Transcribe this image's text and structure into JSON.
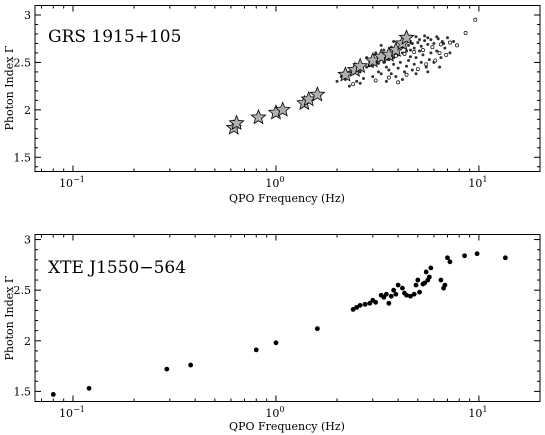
{
  "chart_data": [
    {
      "type": "scatter",
      "title": "GRS 1915+105",
      "xlabel": "QPO Frequency (Hz)",
      "ylabel": "Photon Index  Γ",
      "xscale": "log",
      "xlim": [
        0.065,
        20
      ],
      "ylim": [
        1.35,
        3.1
      ],
      "x_ticks": [
        {
          "value": 0.1,
          "base": "10",
          "exp": "−1"
        },
        {
          "value": 1,
          "base": "10",
          "exp": "0"
        },
        {
          "value": 10,
          "base": "10",
          "exp": "1"
        }
      ],
      "y_ticks": [
        {
          "value": 1.5,
          "label": "1.5"
        },
        {
          "value": 2,
          "label": "2"
        },
        {
          "value": 2.5,
          "label": "2.5"
        },
        {
          "value": 3,
          "label": "3"
        }
      ],
      "grid": false,
      "series": [
        {
          "marker": "star",
          "color": "#b0b0b0",
          "points": [
            [
              0.62,
              1.81
            ],
            [
              0.64,
              1.86
            ],
            [
              0.82,
              1.92
            ],
            [
              1.0,
              1.97
            ],
            [
              1.08,
              2.0
            ],
            [
              1.38,
              2.07
            ],
            [
              1.45,
              2.11
            ],
            [
              1.6,
              2.16
            ],
            [
              2.2,
              2.37
            ],
            [
              2.45,
              2.42
            ],
            [
              2.6,
              2.46
            ],
            [
              3.0,
              2.52
            ],
            [
              3.3,
              2.56
            ],
            [
              3.6,
              2.58
            ],
            [
              3.9,
              2.63
            ],
            [
              4.2,
              2.7
            ],
            [
              4.4,
              2.76
            ]
          ]
        },
        {
          "marker": "dot-small",
          "color": "#333333",
          "points": [
            [
              2.0,
              2.3
            ],
            [
              2.1,
              2.35
            ],
            [
              2.2,
              2.32
            ],
            [
              2.3,
              2.4
            ],
            [
              2.4,
              2.38
            ],
            [
              2.5,
              2.43
            ],
            [
              2.6,
              2.4
            ],
            [
              2.7,
              2.47
            ],
            [
              2.8,
              2.45
            ],
            [
              2.9,
              2.5
            ],
            [
              3.0,
              2.46
            ],
            [
              3.1,
              2.52
            ],
            [
              3.2,
              2.49
            ],
            [
              3.3,
              2.55
            ],
            [
              3.4,
              2.5
            ],
            [
              3.5,
              2.57
            ],
            [
              3.6,
              2.53
            ],
            [
              3.7,
              2.6
            ],
            [
              3.8,
              2.55
            ],
            [
              3.9,
              2.62
            ],
            [
              4.0,
              2.58
            ],
            [
              4.1,
              2.64
            ],
            [
              4.2,
              2.6
            ],
            [
              4.3,
              2.66
            ],
            [
              4.4,
              2.62
            ],
            [
              4.5,
              2.68
            ],
            [
              4.6,
              2.63
            ],
            [
              4.7,
              2.7
            ],
            [
              4.8,
              2.65
            ],
            [
              5.0,
              2.71
            ],
            [
              5.2,
              2.67
            ],
            [
              5.4,
              2.73
            ],
            [
              5.6,
              2.69
            ],
            [
              5.8,
              2.74
            ],
            [
              6.0,
              2.7
            ],
            [
              6.3,
              2.75
            ],
            [
              6.6,
              2.72
            ],
            [
              7.0,
              2.76
            ],
            [
              3.2,
              2.4
            ],
            [
              3.5,
              2.45
            ],
            [
              3.8,
              2.48
            ],
            [
              4.1,
              2.5
            ],
            [
              4.5,
              2.52
            ],
            [
              4.9,
              2.55
            ],
            [
              5.3,
              2.58
            ],
            [
              5.8,
              2.6
            ],
            [
              6.2,
              2.62
            ],
            [
              6.8,
              2.65
            ],
            [
              3.0,
              2.35
            ],
            [
              3.3,
              2.38
            ],
            [
              3.6,
              2.42
            ],
            [
              4.0,
              2.44
            ],
            [
              4.4,
              2.46
            ],
            [
              4.8,
              2.48
            ],
            [
              5.2,
              2.5
            ],
            [
              5.7,
              2.53
            ],
            [
              2.8,
              2.55
            ],
            [
              3.1,
              2.6
            ],
            [
              3.4,
              2.63
            ],
            [
              3.7,
              2.66
            ],
            [
              4.1,
              2.69
            ],
            [
              4.6,
              2.72
            ],
            [
              5.1,
              2.74
            ],
            [
              5.6,
              2.76
            ],
            [
              6.2,
              2.77
            ],
            [
              3.9,
              2.35
            ],
            [
              4.3,
              2.4
            ],
            [
              4.7,
              2.42
            ],
            [
              5.5,
              2.45
            ],
            [
              6.0,
              2.5
            ],
            [
              6.5,
              2.55
            ],
            [
              7.2,
              2.6
            ],
            [
              2.5,
              2.3
            ],
            [
              2.7,
              2.33
            ],
            [
              3.5,
              2.3
            ],
            [
              4.2,
              2.32
            ],
            [
              4.9,
              2.38
            ],
            [
              5.6,
              2.4
            ],
            [
              6.4,
              2.45
            ],
            [
              3.3,
              2.68
            ],
            [
              3.8,
              2.72
            ],
            [
              4.3,
              2.75
            ],
            [
              4.9,
              2.77
            ],
            [
              5.4,
              2.78
            ],
            [
              2.3,
              2.25
            ],
            [
              2.6,
              2.28
            ],
            [
              3.7,
              2.38
            ],
            [
              4.6,
              2.56
            ],
            [
              5.1,
              2.62
            ],
            [
              5.9,
              2.66
            ],
            [
              6.7,
              2.7
            ],
            [
              7.5,
              2.72
            ]
          ]
        },
        {
          "marker": "open-circle",
          "color": "#000000",
          "points": [
            [
              2.9,
              2.47
            ],
            [
              3.2,
              2.51
            ],
            [
              3.5,
              2.54
            ],
            [
              3.9,
              2.57
            ],
            [
              4.3,
              2.59
            ],
            [
              4.8,
              2.61
            ],
            [
              5.3,
              2.63
            ],
            [
              5.9,
              2.66
            ],
            [
              6.5,
              2.69
            ],
            [
              7.2,
              2.71
            ],
            [
              8.6,
              2.81
            ],
            [
              9.6,
              2.95
            ],
            [
              5.5,
              2.48
            ],
            [
              6.1,
              2.52
            ],
            [
              6.9,
              2.58
            ],
            [
              3.6,
              2.34
            ],
            [
              4.4,
              2.37
            ],
            [
              5.0,
              2.43
            ],
            [
              2.4,
              2.27
            ],
            [
              3.1,
              2.31
            ],
            [
              4.0,
              2.29
            ],
            [
              6.4,
              2.6
            ],
            [
              7.8,
              2.68
            ]
          ]
        }
      ]
    },
    {
      "type": "scatter",
      "title": "XTE J1550−564",
      "xlabel": "QPO Frequency (Hz)",
      "ylabel": "Photon Index  Γ",
      "xscale": "log",
      "xlim": [
        0.065,
        20
      ],
      "ylim": [
        1.4,
        3.05
      ],
      "x_ticks": [
        {
          "value": 0.1,
          "base": "10",
          "exp": "−1"
        },
        {
          "value": 1,
          "base": "10",
          "exp": "0"
        },
        {
          "value": 10,
          "base": "10",
          "exp": "1"
        }
      ],
      "y_ticks": [
        {
          "value": 1.5,
          "label": "1.5"
        },
        {
          "value": 2,
          "label": "2"
        },
        {
          "value": 2.5,
          "label": "2.5"
        },
        {
          "value": 3,
          "label": "3"
        }
      ],
      "grid": false,
      "series": [
        {
          "marker": "dot",
          "color": "#000000",
          "points": [
            [
              0.08,
              1.47
            ],
            [
              0.12,
              1.53
            ],
            [
              0.29,
              1.72
            ],
            [
              0.38,
              1.76
            ],
            [
              0.8,
              1.91
            ],
            [
              1.0,
              1.98
            ],
            [
              1.6,
              2.12
            ],
            [
              2.4,
              2.31
            ],
            [
              2.6,
              2.35
            ],
            [
              2.75,
              2.36
            ],
            [
              2.9,
              2.37
            ],
            [
              3.0,
              2.4
            ],
            [
              3.1,
              2.38
            ],
            [
              3.3,
              2.45
            ],
            [
              3.4,
              2.43
            ],
            [
              3.5,
              2.46
            ],
            [
              3.7,
              2.44
            ],
            [
              3.8,
              2.5
            ],
            [
              4.0,
              2.55
            ],
            [
              4.2,
              2.52
            ],
            [
              4.4,
              2.45
            ],
            [
              4.6,
              2.44
            ],
            [
              4.8,
              2.46
            ],
            [
              5.0,
              2.6
            ],
            [
              5.1,
              2.48
            ],
            [
              5.3,
              2.56
            ],
            [
              5.5,
              2.68
            ],
            [
              5.6,
              2.6
            ],
            [
              5.8,
              2.72
            ],
            [
              6.5,
              2.6
            ],
            [
              6.7,
              2.52
            ],
            [
              7.0,
              2.82
            ],
            [
              7.2,
              2.78
            ],
            [
              8.5,
              2.84
            ],
            [
              9.8,
              2.86
            ],
            [
              13.5,
              2.82
            ],
            [
              3.6,
              2.37
            ],
            [
              4.3,
              2.47
            ],
            [
              4.9,
              2.55
            ],
            [
              5.7,
              2.63
            ],
            [
              6.8,
              2.55
            ],
            [
              2.5,
              2.33
            ],
            [
              3.9,
              2.46
            ],
            [
              5.4,
              2.57
            ]
          ]
        }
      ]
    }
  ]
}
